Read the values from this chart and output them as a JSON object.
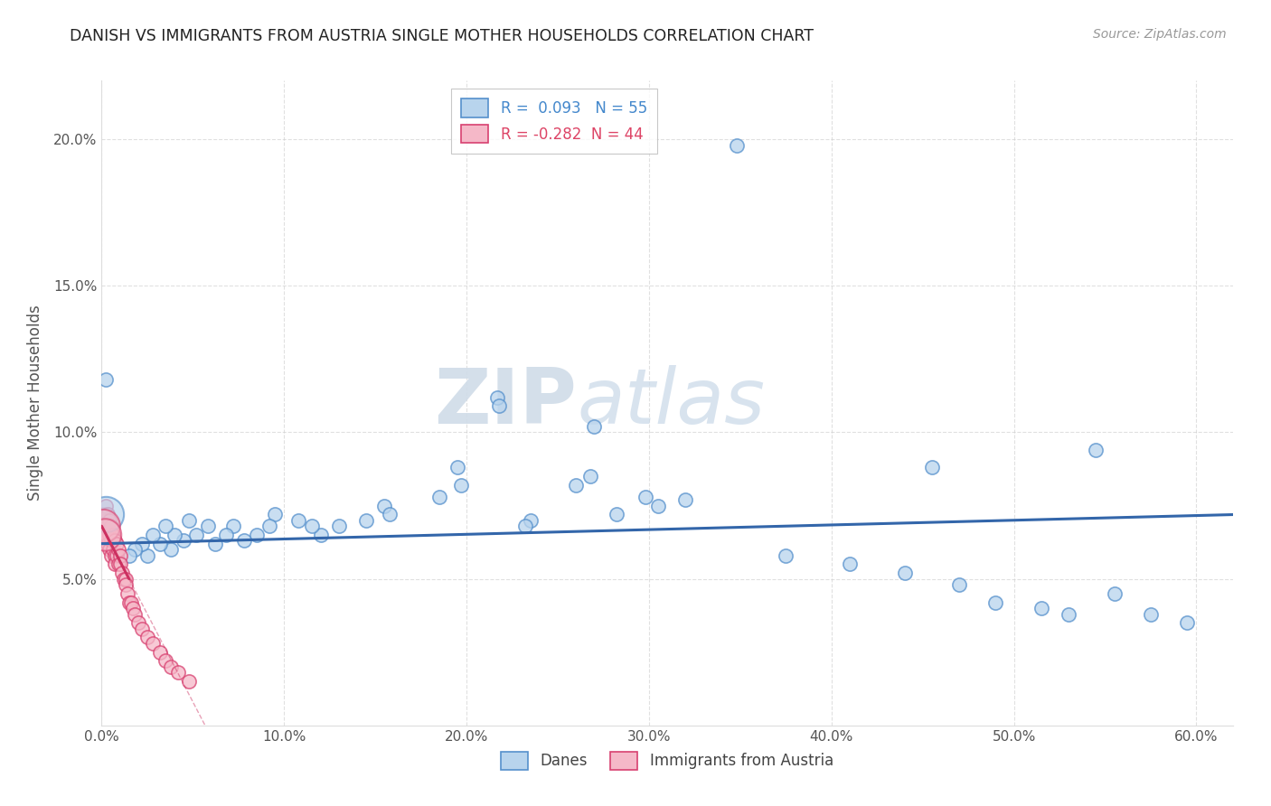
{
  "title": "DANISH VS IMMIGRANTS FROM AUSTRIA SINGLE MOTHER HOUSEHOLDS CORRELATION CHART",
  "source": "Source: ZipAtlas.com",
  "ylabel": "Single Mother Households",
  "r_danes": 0.093,
  "n_danes": 55,
  "r_immigrants": -0.282,
  "n_immigrants": 44,
  "legend_danes": "Danes",
  "legend_immigrants": "Immigrants from Austria",
  "xlim": [
    0.0,
    0.62
  ],
  "ylim": [
    0.0,
    0.22
  ],
  "yticks": [
    0.05,
    0.1,
    0.15,
    0.2
  ],
  "ytick_labels": [
    "5.0%",
    "10.0%",
    "15.0%",
    "20.0%"
  ],
  "xticks": [
    0.0,
    0.1,
    0.2,
    0.3,
    0.4,
    0.5,
    0.6
  ],
  "xtick_labels": [
    "0.0%",
    "10.0%",
    "20.0%",
    "30.0%",
    "40.0%",
    "50.0%",
    "60.0%"
  ],
  "danes_x": [
    0.348,
    0.002,
    0.217,
    0.218,
    0.27,
    0.545,
    0.455,
    0.268,
    0.26,
    0.298,
    0.32,
    0.305,
    0.282,
    0.235,
    0.232,
    0.195,
    0.197,
    0.185,
    0.155,
    0.158,
    0.145,
    0.13,
    0.12,
    0.115,
    0.108,
    0.095,
    0.092,
    0.085,
    0.078,
    0.072,
    0.068,
    0.062,
    0.058,
    0.052,
    0.048,
    0.045,
    0.04,
    0.038,
    0.035,
    0.032,
    0.028,
    0.025,
    0.022,
    0.018,
    0.015,
    0.375,
    0.41,
    0.44,
    0.47,
    0.49,
    0.515,
    0.53,
    0.555,
    0.575,
    0.595
  ],
  "danes_y": [
    0.198,
    0.118,
    0.112,
    0.109,
    0.102,
    0.094,
    0.088,
    0.085,
    0.082,
    0.078,
    0.077,
    0.075,
    0.072,
    0.07,
    0.068,
    0.088,
    0.082,
    0.078,
    0.075,
    0.072,
    0.07,
    0.068,
    0.065,
    0.068,
    0.07,
    0.072,
    0.068,
    0.065,
    0.063,
    0.068,
    0.065,
    0.062,
    0.068,
    0.065,
    0.07,
    0.063,
    0.065,
    0.06,
    0.068,
    0.062,
    0.065,
    0.058,
    0.062,
    0.06,
    0.058,
    0.058,
    0.055,
    0.052,
    0.048,
    0.042,
    0.04,
    0.038,
    0.045,
    0.038,
    0.035
  ],
  "immigrants_x": [
    0.001,
    0.001,
    0.001,
    0.002,
    0.002,
    0.002,
    0.003,
    0.003,
    0.003,
    0.004,
    0.004,
    0.004,
    0.005,
    0.005,
    0.005,
    0.006,
    0.006,
    0.007,
    0.007,
    0.007,
    0.008,
    0.008,
    0.009,
    0.009,
    0.01,
    0.01,
    0.011,
    0.012,
    0.013,
    0.013,
    0.014,
    0.015,
    0.016,
    0.017,
    0.018,
    0.02,
    0.022,
    0.025,
    0.028,
    0.032,
    0.035,
    0.038,
    0.042,
    0.048
  ],
  "immigrants_y": [
    0.072,
    0.068,
    0.065,
    0.075,
    0.07,
    0.065,
    0.072,
    0.068,
    0.062,
    0.07,
    0.065,
    0.06,
    0.068,
    0.063,
    0.058,
    0.065,
    0.06,
    0.063,
    0.058,
    0.055,
    0.062,
    0.058,
    0.06,
    0.055,
    0.058,
    0.055,
    0.052,
    0.05,
    0.05,
    0.048,
    0.045,
    0.042,
    0.042,
    0.04,
    0.038,
    0.035,
    0.033,
    0.03,
    0.028,
    0.025,
    0.022,
    0.02,
    0.018,
    0.015
  ],
  "color_danes_fill": "#b8d4ed",
  "color_danes_edge": "#5590cc",
  "color_immigrants_fill": "#f5b8c8",
  "color_immigrants_edge": "#d84070",
  "color_danes_line": "#3366aa",
  "color_immigrants_line": "#cc3060",
  "background_color": "#ffffff",
  "grid_color": "#cccccc",
  "watermark_zip": "ZIP",
  "watermark_atlas": "atlas",
  "title_color": "#222222",
  "axis_label_color": "#555555",
  "tick_color": "#555555",
  "legend_text_color_danes": "#4488cc",
  "legend_text_color_immigrants": "#dd4466"
}
